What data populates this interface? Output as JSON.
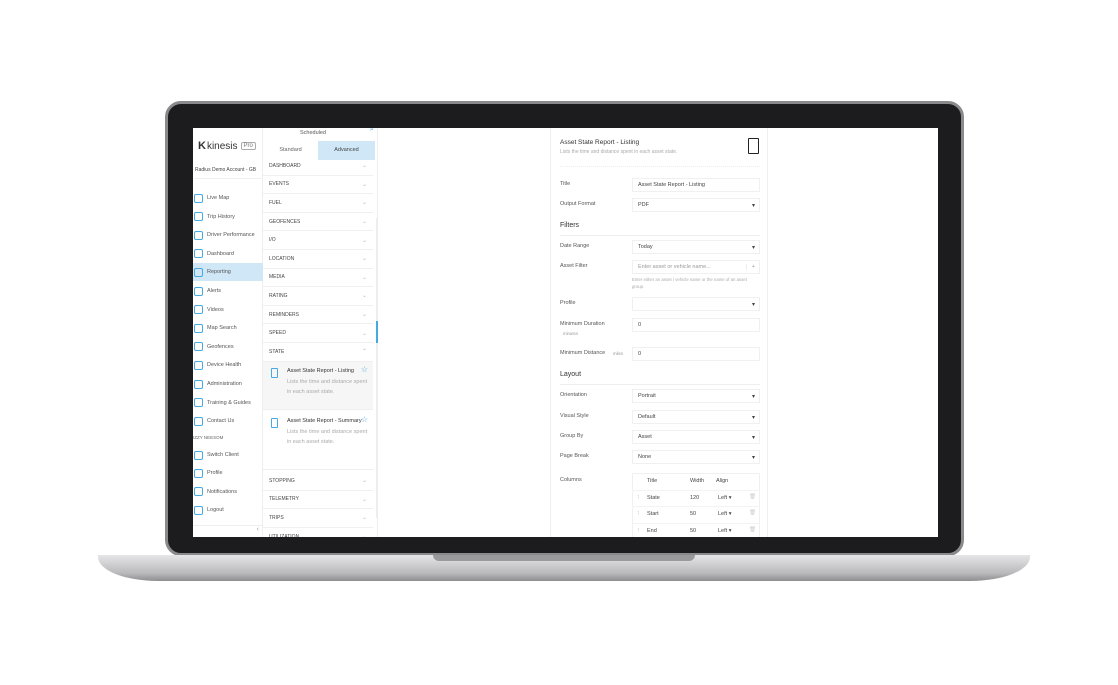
{
  "brand": {
    "name": "kinesis",
    "badge": "Pro"
  },
  "account": "Radius Demo Account - GB",
  "sidebar": {
    "items": [
      {
        "label": "Live Map",
        "icon": "globe-icon"
      },
      {
        "label": "Trip History",
        "icon": "history-icon"
      },
      {
        "label": "Driver Performance",
        "icon": "driver-icon"
      },
      {
        "label": "Dashboard",
        "icon": "chart-icon"
      },
      {
        "label": "Reporting",
        "icon": "reporting-icon",
        "active": true
      },
      {
        "label": "Alerts",
        "icon": "alert-icon"
      },
      {
        "label": "Videos",
        "icon": "video-icon"
      },
      {
        "label": "Map Search",
        "icon": "map-search-icon"
      },
      {
        "label": "Geofences",
        "icon": "geofence-icon"
      },
      {
        "label": "Device Health",
        "icon": "heart-icon"
      },
      {
        "label": "Administration",
        "icon": "admin-icon"
      },
      {
        "label": "Training & Guides",
        "icon": "monitor-icon"
      },
      {
        "label": "Contact Us",
        "icon": "phone-icon"
      }
    ],
    "user": "IZZY NEESOM",
    "user_items": [
      {
        "label": "Switch Client",
        "icon": "home-icon"
      },
      {
        "label": "Profile",
        "icon": "profile-icon"
      },
      {
        "label": "Notifications",
        "icon": "bell-icon"
      },
      {
        "label": "Logout",
        "icon": "logout-icon"
      }
    ],
    "collapse": "‹"
  },
  "reports": {
    "scheduled_tab": "Scheduled",
    "tabs": [
      "Standard",
      "Advanced"
    ],
    "active_tab": "Advanced",
    "categories_top": [
      "DASHBOARD",
      "EVENTS",
      "FUEL",
      "GEOFENCES",
      "I/O",
      "LOCATION",
      "MEDIA",
      "RATING",
      "REMINDERS",
      "SPEED",
      "STATE"
    ],
    "state_items": [
      {
        "name": "Asset State Report - Listing",
        "desc": "Lists the time and distance spent in each asset state."
      },
      {
        "name": "Asset State Report - Summary",
        "desc": "Lists the time and distance spent in each asset state."
      }
    ],
    "categories_bottom": [
      "STOPPING",
      "TELEMETRY",
      "TRIPS",
      "UTILIZATION"
    ]
  },
  "form": {
    "title": "Asset State Report - Listing",
    "subtitle": "Lists the time and distance spent in each asset state.",
    "title_label": "Title",
    "title_value": "Asset State Report - Listing",
    "output_label": "Output Format",
    "output_value": "PDF",
    "filters": "Filters",
    "date_label": "Date Range",
    "date_value": "Today",
    "asset_label": "Asset Filter",
    "asset_placeholder": "Enter asset or vehicle name...",
    "asset_hint": "Enter either an asset / vehicle name or the name of an asset group.",
    "profile_label": "Profile",
    "mindur_label": "Minimum Duration",
    "mindur_unit": "minutes",
    "mindur_value": "0",
    "mindist_label": "Minimum Distance",
    "mindist_unit": "miles",
    "mindist_value": "0",
    "layout": "Layout",
    "orientation_label": "Orientation",
    "orientation_value": "Portrait",
    "style_label": "Visual Style",
    "style_value": "Default",
    "group_label": "Group By",
    "group_value": "Asset",
    "pagebreak_label": "Page Break",
    "pagebreak_value": "None",
    "columns_label": "Columns",
    "col_headers": [
      "Title",
      "Width",
      "Align"
    ],
    "columns": [
      {
        "title": "State",
        "width": "120",
        "align": "Left"
      },
      {
        "title": "Start",
        "width": "50",
        "align": "Left"
      },
      {
        "title": "End",
        "width": "50",
        "align": "Left"
      }
    ]
  },
  "colors": {
    "accent": "#48a8e0",
    "active_bg": "#cfe7f7"
  }
}
